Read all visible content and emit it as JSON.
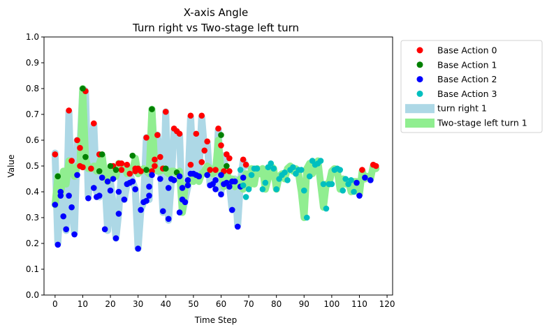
{
  "chart_data": {
    "type": "scatter",
    "title": "X-axis Angle",
    "subtitle": "Turn right vs Two-stage left turn",
    "xlabel": "Time Step",
    "ylabel": "Value",
    "xlim": [
      -4,
      122
    ],
    "ylim": [
      0.0,
      1.0
    ],
    "xticks": [
      0,
      10,
      20,
      30,
      40,
      50,
      60,
      70,
      80,
      90,
      100,
      110,
      120
    ],
    "yticks": [
      0.0,
      0.1,
      0.2,
      0.3,
      0.4,
      0.5,
      0.6,
      0.7,
      0.8,
      0.9,
      1.0
    ],
    "grid": false,
    "legend_position": "outside-upper-right",
    "legend": [
      {
        "label": "Base Action 0",
        "kind": "marker",
        "color": "#ff0000"
      },
      {
        "label": "Base Action 1",
        "kind": "marker",
        "color": "#008000"
      },
      {
        "label": "Base Action 2",
        "kind": "marker",
        "color": "#0000ff"
      },
      {
        "label": "Base Action 3",
        "kind": "marker",
        "color": "#00bfbf"
      },
      {
        "label": "turn right 1",
        "kind": "band",
        "color": "#add8e6"
      },
      {
        "label": "Two-stage left turn 1",
        "kind": "band",
        "color": "#90ee90"
      }
    ],
    "bands": [
      {
        "name": "turn right 1",
        "color": "#add8e6",
        "x_start": 0,
        "values": [
          0.55,
          0.2,
          0.4,
          0.31,
          0.25,
          0.71,
          0.34,
          0.24,
          0.6,
          0.57,
          0.8,
          0.79,
          0.38,
          0.53,
          0.66,
          0.4,
          0.38,
          0.54,
          0.45,
          0.25,
          0.44,
          0.35,
          0.22,
          0.32,
          0.48,
          0.37,
          0.43,
          0.47,
          0.44,
          0.41,
          0.18,
          0.33,
          0.36,
          0.61,
          0.37,
          0.72,
          0.53,
          0.62,
          0.53,
          0.32,
          0.71,
          0.29,
          0.44,
          0.64,
          0.63,
          0.62,
          0.32,
          0.37,
          0.42,
          0.69,
          0.47,
          0.62,
          0.47,
          0.69,
          0.56,
          0.59,
          0.43,
          0.49,
          0.42,
          0.64,
          0.4,
          0.54,
          0.44,
          0.43,
          0.33,
          0.45,
          0.27,
          0.44,
          0.52,
          0.5
        ]
      },
      {
        "name": "Two-stage left turn 1",
        "color": "#90ee90",
        "x_start": 0,
        "values": [
          0.35,
          0.46,
          0.39,
          0.48,
          0.43,
          0.52,
          0.48,
          0.46,
          0.5,
          0.5,
          0.8,
          0.53,
          0.49,
          0.49,
          0.5,
          0.48,
          0.51,
          0.54,
          0.46,
          0.44,
          0.49,
          0.48,
          0.46,
          0.51,
          0.49,
          0.5,
          0.47,
          0.49,
          0.48,
          0.53,
          0.47,
          0.48,
          0.49,
          0.48,
          0.47,
          0.72,
          0.5,
          0.48,
          0.48,
          0.49,
          0.48,
          0.47,
          0.48,
          0.48,
          0.47,
          0.48,
          0.32,
          0.42,
          0.43,
          0.45,
          0.44,
          0.46,
          0.44,
          0.47,
          0.48,
          0.5,
          0.49,
          0.47,
          0.48,
          0.6,
          0.48,
          0.42,
          0.48,
          0.44,
          0.45,
          0.42,
          0.44,
          0.45,
          0.41,
          0.47,
          0.42,
          0.49,
          0.43,
          0.49,
          0.47,
          0.49,
          0.41,
          0.45,
          0.5,
          0.49,
          0.41,
          0.46,
          0.47,
          0.45,
          0.49,
          0.5,
          0.48,
          0.49,
          0.47,
          0.4,
          0.3,
          0.49,
          0.51,
          0.47,
          0.5,
          0.52,
          0.43,
          0.34,
          0.43,
          0.43,
          0.48,
          0.49,
          0.48,
          0.41,
          0.45,
          0.43,
          0.44,
          0.4,
          0.44,
          0.44,
          0.39,
          0.48,
          0.45,
          0.46,
          0.45,
          0.5,
          0.49
        ]
      }
    ],
    "series": [
      {
        "name": "Base Action 0",
        "color": "#ff0000",
        "points": [
          [
            0,
            0.545
          ],
          [
            5,
            0.715
          ],
          [
            6,
            0.52
          ],
          [
            8,
            0.6
          ],
          [
            9,
            0.57
          ],
          [
            9,
            0.5
          ],
          [
            10,
            0.495
          ],
          [
            11,
            0.79
          ],
          [
            13,
            0.49
          ],
          [
            14,
            0.665
          ],
          [
            16,
            0.545
          ],
          [
            21,
            0.5
          ],
          [
            23,
            0.51
          ],
          [
            24,
            0.51
          ],
          [
            24,
            0.485
          ],
          [
            26,
            0.505
          ],
          [
            27,
            0.47
          ],
          [
            29,
            0.49
          ],
          [
            29,
            0.48
          ],
          [
            30,
            0.49
          ],
          [
            31,
            0.48
          ],
          [
            33,
            0.61
          ],
          [
            35,
            0.48
          ],
          [
            36,
            0.5
          ],
          [
            36,
            0.525
          ],
          [
            37,
            0.62
          ],
          [
            38,
            0.535
          ],
          [
            39,
            0.49
          ],
          [
            40,
            0.71
          ],
          [
            43,
            0.645
          ],
          [
            44,
            0.635
          ],
          [
            45,
            0.625
          ],
          [
            49,
            0.505
          ],
          [
            49,
            0.695
          ],
          [
            51,
            0.625
          ],
          [
            53,
            0.695
          ],
          [
            53,
            0.515
          ],
          [
            54,
            0.56
          ],
          [
            55,
            0.595
          ],
          [
            56,
            0.485
          ],
          [
            58,
            0.485
          ],
          [
            59,
            0.645
          ],
          [
            60,
            0.58
          ],
          [
            61,
            0.48
          ],
          [
            62,
            0.545
          ],
          [
            63,
            0.48
          ],
          [
            63,
            0.53
          ],
          [
            68,
            0.525
          ],
          [
            69,
            0.505
          ],
          [
            111,
            0.485
          ],
          [
            115,
            0.505
          ],
          [
            116,
            0.5
          ]
        ]
      },
      {
        "name": "Base Action 1",
        "color": "#008000",
        "points": [
          [
            1,
            0.46
          ],
          [
            10,
            0.8
          ],
          [
            11,
            0.535
          ],
          [
            16,
            0.48
          ],
          [
            17,
            0.545
          ],
          [
            20,
            0.5
          ],
          [
            22,
            0.485
          ],
          [
            28,
            0.54
          ],
          [
            33,
            0.485
          ],
          [
            35,
            0.72
          ],
          [
            40,
            0.49
          ],
          [
            44,
            0.475
          ],
          [
            52,
            0.46
          ],
          [
            60,
            0.62
          ],
          [
            62,
            0.5
          ]
        ]
      },
      {
        "name": "Base Action 2",
        "color": "#0000ff",
        "points": [
          [
            0,
            0.35
          ],
          [
            1,
            0.195
          ],
          [
            2,
            0.4
          ],
          [
            2,
            0.385
          ],
          [
            3,
            0.305
          ],
          [
            4,
            0.255
          ],
          [
            5,
            0.385
          ],
          [
            6,
            0.34
          ],
          [
            7,
            0.235
          ],
          [
            8,
            0.465
          ],
          [
            12,
            0.375
          ],
          [
            14,
            0.415
          ],
          [
            15,
            0.38
          ],
          [
            16,
            0.385
          ],
          [
            17,
            0.455
          ],
          [
            18,
            0.255
          ],
          [
            19,
            0.44
          ],
          [
            20,
            0.405
          ],
          [
            21,
            0.45
          ],
          [
            22,
            0.22
          ],
          [
            23,
            0.315
          ],
          [
            23,
            0.4
          ],
          [
            25,
            0.37
          ],
          [
            26,
            0.43
          ],
          [
            27,
            0.435
          ],
          [
            28,
            0.44
          ],
          [
            29,
            0.41
          ],
          [
            30,
            0.18
          ],
          [
            31,
            0.33
          ],
          [
            32,
            0.36
          ],
          [
            33,
            0.365
          ],
          [
            34,
            0.42
          ],
          [
            34,
            0.385
          ],
          [
            35,
            0.465
          ],
          [
            38,
            0.45
          ],
          [
            39,
            0.325
          ],
          [
            41,
            0.295
          ],
          [
            41,
            0.415
          ],
          [
            42,
            0.45
          ],
          [
            43,
            0.445
          ],
          [
            45,
            0.32
          ],
          [
            45,
            0.46
          ],
          [
            46,
            0.37
          ],
          [
            46,
            0.415
          ],
          [
            47,
            0.36
          ],
          [
            48,
            0.425
          ],
          [
            48,
            0.445
          ],
          [
            49,
            0.47
          ],
          [
            50,
            0.47
          ],
          [
            51,
            0.465
          ],
          [
            52,
            0.46
          ],
          [
            55,
            0.465
          ],
          [
            56,
            0.425
          ],
          [
            57,
            0.43
          ],
          [
            58,
            0.445
          ],
          [
            58,
            0.41
          ],
          [
            60,
            0.465
          ],
          [
            60,
            0.39
          ],
          [
            61,
            0.43
          ],
          [
            62,
            0.435
          ],
          [
            63,
            0.42
          ],
          [
            64,
            0.44
          ],
          [
            64,
            0.33
          ],
          [
            65,
            0.44
          ],
          [
            66,
            0.265
          ],
          [
            67,
            0.42
          ],
          [
            68,
            0.455
          ],
          [
            109,
            0.435
          ],
          [
            110,
            0.385
          ],
          [
            112,
            0.455
          ],
          [
            114,
            0.445
          ]
        ]
      },
      {
        "name": "Base Action 3",
        "color": "#00bfbf",
        "points": [
          [
            67,
            0.485
          ],
          [
            68,
            0.425
          ],
          [
            69,
            0.38
          ],
          [
            70,
            0.41
          ],
          [
            71,
            0.465
          ],
          [
            72,
            0.49
          ],
          [
            73,
            0.49
          ],
          [
            75,
            0.41
          ],
          [
            76,
            0.435
          ],
          [
            77,
            0.495
          ],
          [
            78,
            0.51
          ],
          [
            79,
            0.49
          ],
          [
            80,
            0.41
          ],
          [
            81,
            0.45
          ],
          [
            82,
            0.465
          ],
          [
            83,
            0.475
          ],
          [
            84,
            0.445
          ],
          [
            85,
            0.485
          ],
          [
            86,
            0.495
          ],
          [
            87,
            0.47
          ],
          [
            88,
            0.485
          ],
          [
            89,
            0.485
          ],
          [
            90,
            0.405
          ],
          [
            91,
            0.3
          ],
          [
            92,
            0.46
          ],
          [
            93,
            0.52
          ],
          [
            94,
            0.505
          ],
          [
            95,
            0.51
          ],
          [
            96,
            0.52
          ],
          [
            97,
            0.43
          ],
          [
            98,
            0.335
          ],
          [
            99,
            0.43
          ],
          [
            100,
            0.43
          ],
          [
            101,
            0.485
          ],
          [
            102,
            0.49
          ],
          [
            103,
            0.485
          ],
          [
            104,
            0.405
          ],
          [
            105,
            0.45
          ],
          [
            106,
            0.43
          ],
          [
            107,
            0.445
          ],
          [
            108,
            0.4
          ]
        ]
      }
    ]
  }
}
